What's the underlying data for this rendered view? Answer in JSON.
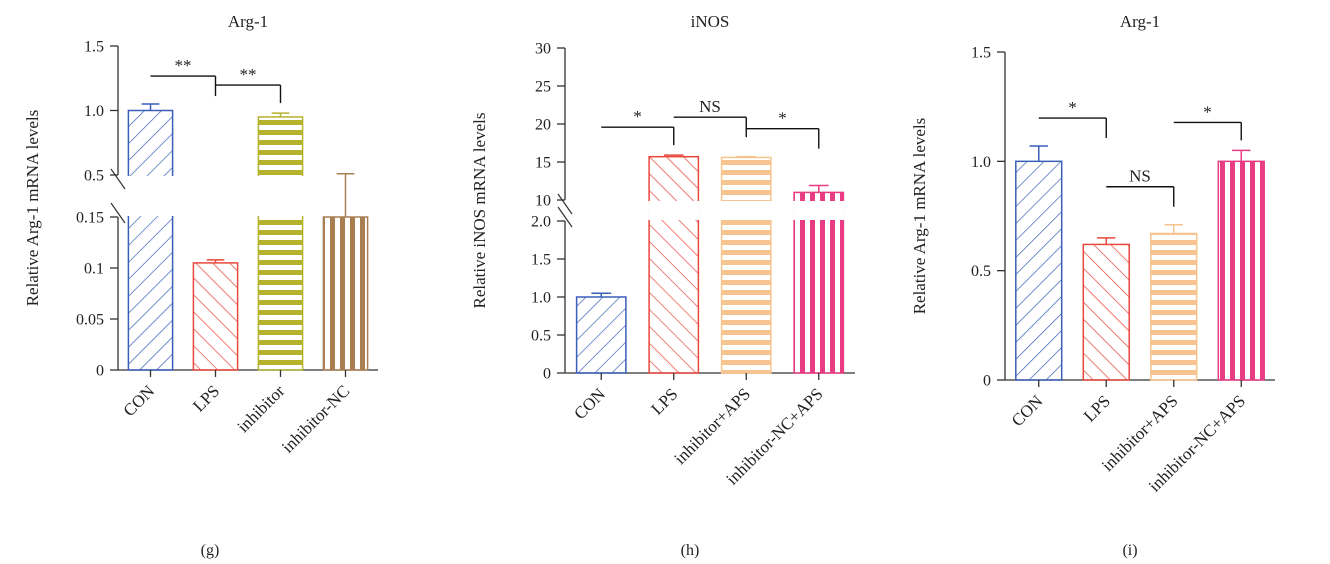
{
  "chart_data": [
    {
      "panel": "(g)",
      "type": "bar",
      "title": "Arg-1",
      "ylabel": "Relative Arg-1 mRNA levels",
      "categories": [
        "CON",
        "LPS",
        "inhibitor",
        "inhibitor-NC"
      ],
      "values": [
        1.0,
        0.105,
        0.95,
        0.49
      ],
      "errors": [
        0.05,
        0.003,
        0.03,
        0.02
      ],
      "colors": [
        "#3a5fb8",
        "#e8473c",
        "#b5b22e",
        "#a97f52"
      ],
      "patterns": [
        "diag-up",
        "diag-down",
        "horizontal",
        "vertical"
      ],
      "axis_broken": true,
      "y_lower_range": [
        0,
        0.15
      ],
      "y_upper_range": [
        0.5,
        1.5
      ],
      "y_ticks": [
        {
          "value": 0,
          "label": "0"
        },
        {
          "value": 0.05,
          "label": "0.05"
        },
        {
          "value": 0.1,
          "label": "0.1"
        },
        {
          "value": 0.15,
          "label": "0.15"
        },
        {
          "value": 0.5,
          "label": "0.5"
        },
        {
          "value": 1.0,
          "label": "1.0"
        },
        {
          "value": 1.5,
          "label": "1.5"
        }
      ],
      "annotations": [
        {
          "from": 0,
          "to": 1,
          "label": "**"
        },
        {
          "from": 1,
          "to": 2,
          "label": "**"
        }
      ]
    },
    {
      "panel": "(h)",
      "type": "bar",
      "title": "iNOS",
      "ylabel": "Relative iNOS mRNA levels",
      "categories": [
        "CON",
        "LPS",
        "inhibitor+APS",
        "inhibitor-NC+APS"
      ],
      "values": [
        1.0,
        15.7,
        15.6,
        11.0
      ],
      "errors": [
        0.05,
        0.2,
        0.1,
        0.9
      ],
      "colors": [
        "#3a5fb8",
        "#e8473c",
        "#f7c38e",
        "#e83d83"
      ],
      "patterns": [
        "diag-up",
        "diag-down",
        "horizontal",
        "vertical"
      ],
      "axis_broken": true,
      "y_lower_range": [
        0,
        2.0
      ],
      "y_upper_range": [
        10,
        30
      ],
      "y_ticks": [
        {
          "value": 0,
          "label": "0"
        },
        {
          "value": 0.5,
          "label": "0.5"
        },
        {
          "value": 1.0,
          "label": "1.0"
        },
        {
          "value": 1.5,
          "label": "1.5"
        },
        {
          "value": 2.0,
          "label": "2.0"
        },
        {
          "value": 10,
          "label": "10"
        },
        {
          "value": 15,
          "label": "15"
        },
        {
          "value": 20,
          "label": "20"
        },
        {
          "value": 25,
          "label": "25"
        },
        {
          "value": 30,
          "label": "30"
        }
      ],
      "annotations": [
        {
          "from": 0,
          "to": 1,
          "label": "*"
        },
        {
          "from": 1,
          "to": 2,
          "label": "NS"
        },
        {
          "from": 2,
          "to": 3,
          "label": "*"
        }
      ]
    },
    {
      "panel": "(i)",
      "type": "bar",
      "title": "Arg-1",
      "ylabel": "Relative Arg-1 mRNA levels",
      "categories": [
        "CON",
        "LPS",
        "inhibitor+APS",
        "inhibitor-NC+APS"
      ],
      "values": [
        1.0,
        0.62,
        0.67,
        1.0
      ],
      "errors": [
        0.07,
        0.03,
        0.04,
        0.05
      ],
      "colors": [
        "#3a5fb8",
        "#e8473c",
        "#f7c38e",
        "#e83d83"
      ],
      "patterns": [
        "diag-up",
        "diag-down",
        "horizontal",
        "vertical"
      ],
      "axis_broken": false,
      "ylim": [
        0,
        1.5
      ],
      "y_ticks": [
        {
          "value": 0,
          "label": "0"
        },
        {
          "value": 0.5,
          "label": "0.5"
        },
        {
          "value": 1.0,
          "label": "1.0"
        },
        {
          "value": 1.5,
          "label": "1.5"
        }
      ],
      "annotations": [
        {
          "from": 0,
          "to": 1,
          "label": "*"
        },
        {
          "from": 1,
          "to": 2,
          "label": "NS"
        },
        {
          "from": 2,
          "to": 3,
          "label": "*"
        }
      ]
    }
  ]
}
